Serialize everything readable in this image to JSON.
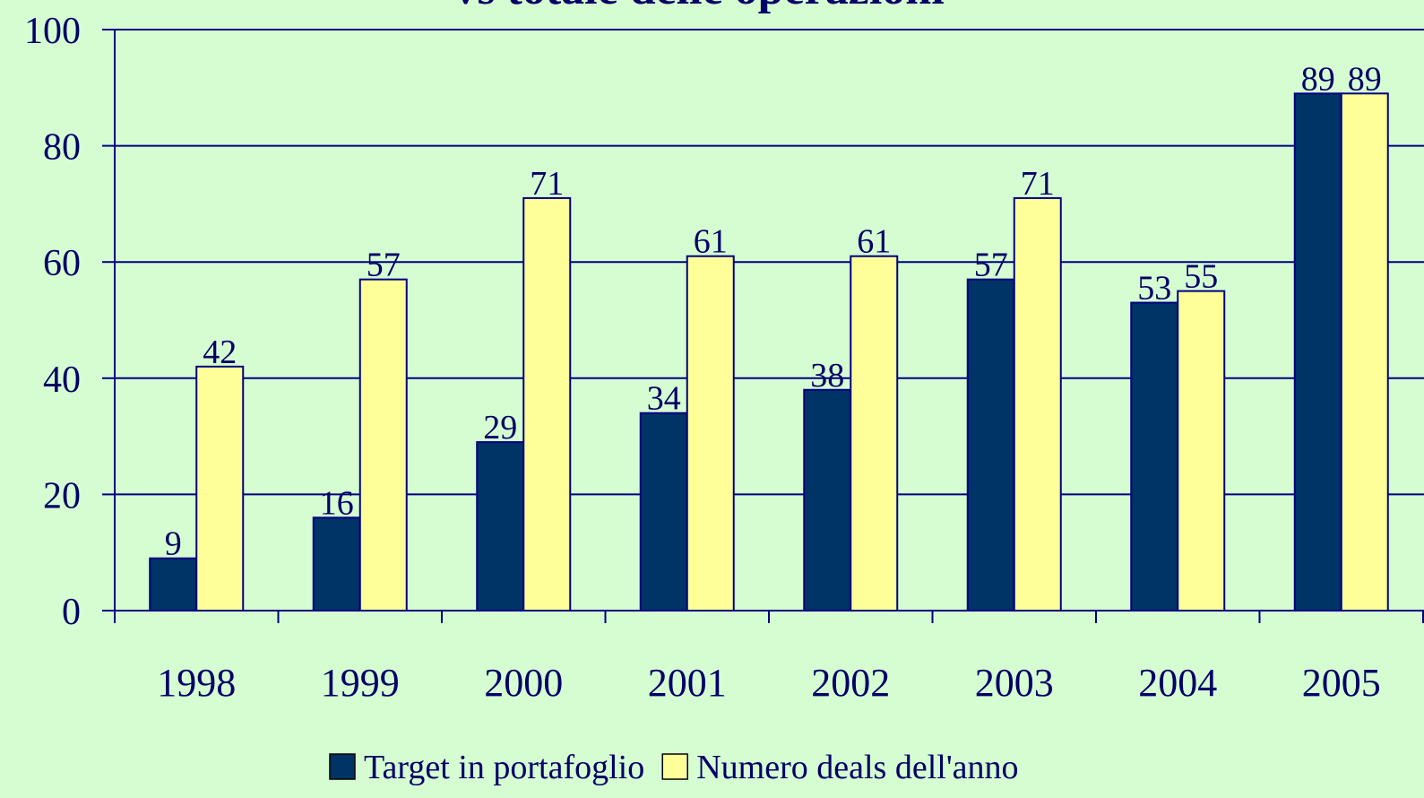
{
  "chart_data": {
    "type": "bar",
    "title": "vs totale delle operazioni",
    "categories": [
      "1998",
      "1999",
      "2000",
      "2001",
      "2002",
      "2003",
      "2004",
      "2005"
    ],
    "series": [
      {
        "name": "Target in portafoglio",
        "color": "#003366",
        "values": [
          9,
          16,
          29,
          34,
          38,
          57,
          53,
          89
        ]
      },
      {
        "name": "Numero deals dell'anno",
        "color": "#ffff99",
        "values": [
          42,
          57,
          71,
          61,
          61,
          71,
          55,
          89
        ]
      }
    ],
    "ylim": [
      0,
      100
    ],
    "yticks": [
      0,
      20,
      40,
      60,
      80,
      100
    ],
    "grid": true,
    "legend": "bottom"
  }
}
